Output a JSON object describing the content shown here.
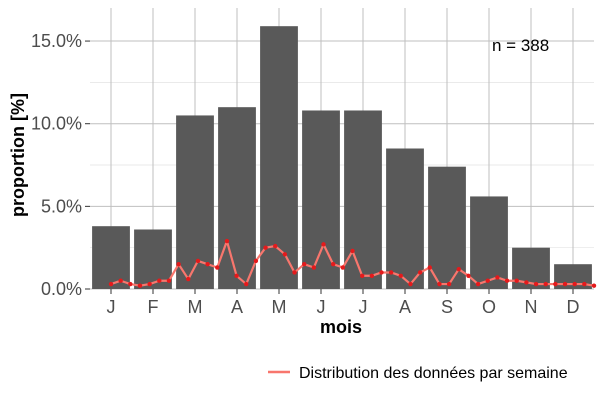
{
  "chart_data": {
    "type": "bar",
    "categories": [
      "J",
      "F",
      "M",
      "A",
      "M",
      "J",
      "J",
      "A",
      "S",
      "O",
      "N",
      "D"
    ],
    "values": [
      3.8,
      3.6,
      10.5,
      11.0,
      15.9,
      10.8,
      10.8,
      8.5,
      7.4,
      5.6,
      2.5,
      1.5
    ],
    "xlabel": "mois",
    "ylabel": "proportion [%]",
    "ylim": [
      0,
      17
    ],
    "yticks": [
      0,
      5,
      10,
      15
    ],
    "ytick_labels": [
      "0.0%",
      "5.0%",
      "10.0%",
      "15.0%"
    ],
    "annotation": "n = 388",
    "grid": true,
    "legend_position": "bottom-right",
    "colors": {
      "bar": "#595959",
      "line": "#f8766d",
      "point": "#e41a1c"
    },
    "series": [
      {
        "name": "Distribution des données par semaine",
        "type": "line",
        "x": [
          1.0,
          1.23,
          1.46,
          1.69,
          1.92,
          2.15,
          2.38,
          2.61,
          2.84,
          3.07,
          3.3,
          3.53,
          3.76,
          3.99,
          4.22,
          4.45,
          4.68,
          4.91,
          5.14,
          5.37,
          5.6,
          5.83,
          6.06,
          6.29,
          6.52,
          6.75,
          6.98,
          7.21,
          7.44,
          7.67,
          7.9,
          8.13,
          8.36,
          8.59,
          8.82,
          9.05,
          9.28,
          9.51,
          9.74,
          9.97,
          10.2,
          10.43,
          10.66,
          10.89,
          11.12,
          11.35,
          11.58,
          11.81,
          12.04,
          12.27,
          12.5
        ],
        "values": [
          0.3,
          0.5,
          0.3,
          0.2,
          0.3,
          0.5,
          0.5,
          1.5,
          0.6,
          1.7,
          1.5,
          1.3,
          2.9,
          0.8,
          0.3,
          1.7,
          2.5,
          2.6,
          2.1,
          1.0,
          1.5,
          1.3,
          2.7,
          1.5,
          1.3,
          2.3,
          0.8,
          0.8,
          1.0,
          1.0,
          0.8,
          0.3,
          1.0,
          1.3,
          0.3,
          0.3,
          1.2,
          0.8,
          0.3,
          0.5,
          0.7,
          0.5,
          0.5,
          0.4,
          0.3,
          0.3,
          0.3,
          0.3,
          0.3,
          0.3,
          0.2
        ]
      }
    ]
  }
}
